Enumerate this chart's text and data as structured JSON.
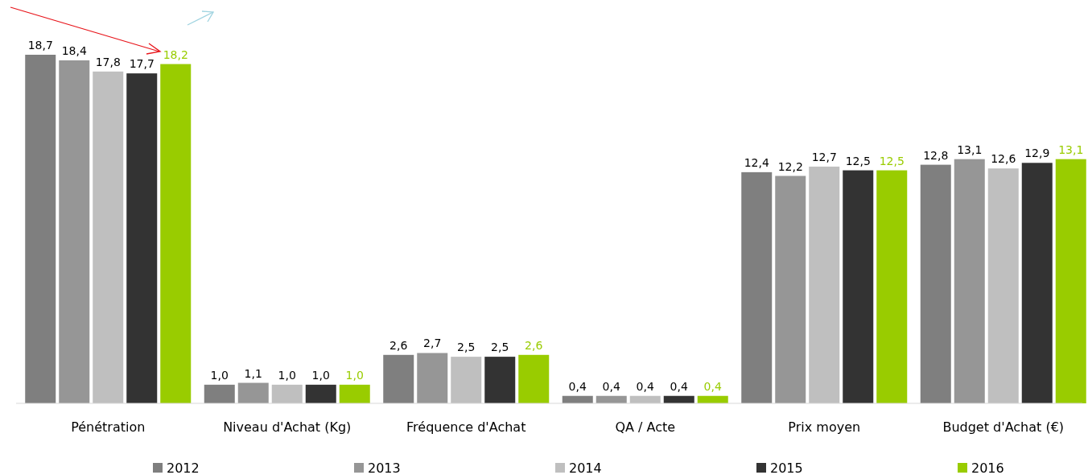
{
  "chart_data": {
    "type": "bar",
    "categories": [
      "Pénétration",
      "Niveau d'Achat (Kg)",
      "Fréquence d'Achat",
      "QA / Acte",
      "Prix moyen",
      "Budget d'Achat (€)"
    ],
    "series": [
      {
        "name": "2012",
        "color": "#7f7f7f",
        "values": [
          18.7,
          1.0,
          2.6,
          0.4,
          12.4,
          12.8
        ],
        "value_labels": [
          "18,7",
          "1,0",
          "2,6",
          "0,4",
          "12,4",
          "12,8"
        ]
      },
      {
        "name": "2013",
        "color": "#969696",
        "values": [
          18.4,
          1.1,
          2.7,
          0.4,
          12.2,
          13.1
        ],
        "value_labels": [
          "18,4",
          "1,1",
          "2,7",
          "0,4",
          "12,2",
          "13,1"
        ]
      },
      {
        "name": "2014",
        "color": "#bfbfbf",
        "values": [
          17.8,
          1.0,
          2.5,
          0.4,
          12.7,
          12.6
        ],
        "value_labels": [
          "17,8",
          "1,0",
          "2,5",
          "0,4",
          "12,7",
          "12,6"
        ]
      },
      {
        "name": "2015",
        "color": "#333333",
        "values": [
          17.7,
          1.0,
          2.5,
          0.4,
          12.5,
          12.9
        ],
        "value_labels": [
          "17,7",
          "1,0",
          "2,5",
          "0,4",
          "12,5",
          "12,9"
        ]
      },
      {
        "name": "2016",
        "color": "#99cc00",
        "values": [
          18.2,
          1.0,
          2.6,
          0.4,
          12.5,
          13.1
        ],
        "value_labels": [
          "18,2",
          "1,0",
          "2,6",
          "0,4",
          "12,5",
          "13,1"
        ]
      }
    ],
    "legend": "bottom"
  }
}
